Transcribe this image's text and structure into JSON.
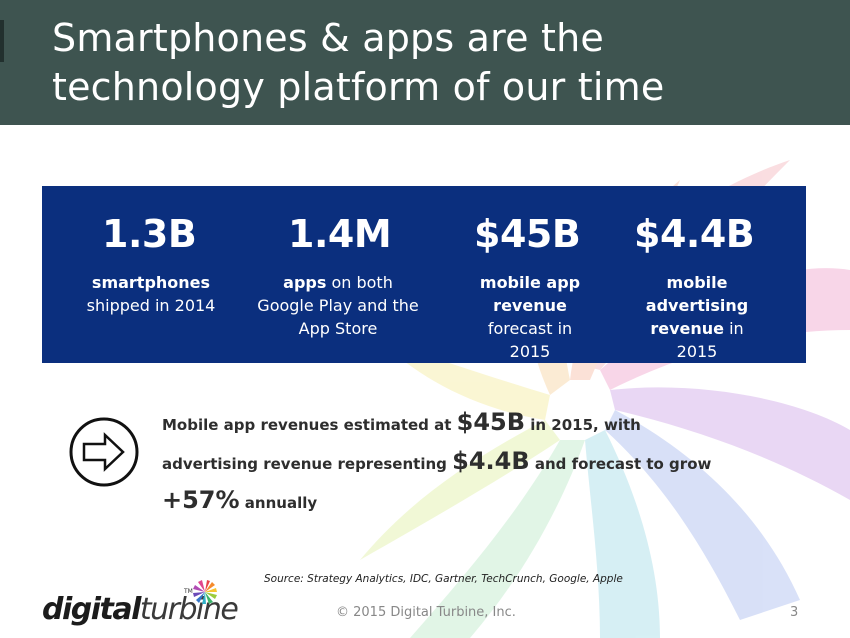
{
  "slide": {
    "title_line1": "Smartphones & apps are the",
    "title_line2": "technology platform of our time"
  },
  "stats": [
    {
      "value": "1.3B",
      "bold": "smartphones",
      "rest": "shipped in 2014"
    },
    {
      "value": "1.4M",
      "bold": "apps",
      "rest": "on both Google Play and the App Store"
    },
    {
      "value": "$45B",
      "bold": "mobile app revenue",
      "rest": "forecast in 2015"
    },
    {
      "value": "$4.4B",
      "bold": "mobile advertising revenue",
      "rest": "in 2015"
    }
  ],
  "summary": {
    "part1": "Mobile app revenues estimated at ",
    "big1": "$45B",
    "part2": " in 2015, with",
    "part3": "advertising revenue representing ",
    "big2": "$4.4B",
    "part4": " and forecast to grow",
    "big3": "+57%",
    "part5": " annually"
  },
  "source": "Source: Strategy Analytics, IDC, Gartner, TechCrunch, Google,  Apple",
  "footer": {
    "copyright": "© 2015 Digital Turbine, Inc.",
    "page_number": "3"
  },
  "logo": {
    "text_bold": "digital",
    "text_light": "turbine",
    "tm": "TM"
  },
  "colors": {
    "header_bg": "#3e5450",
    "stats_bg": "#0b2f7e"
  },
  "icons": {
    "arrow": "right-arrow-circle-icon",
    "logo_mark": "turbine-swirl-icon"
  }
}
